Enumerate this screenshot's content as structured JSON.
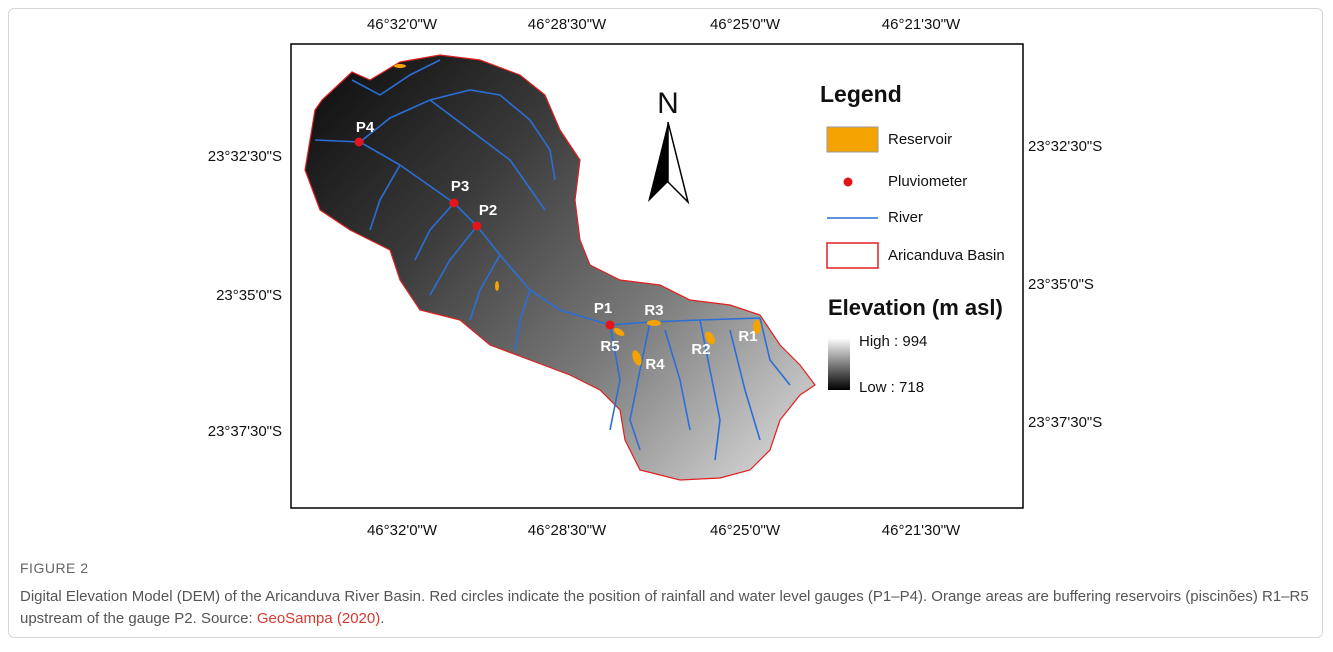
{
  "map": {
    "x_axis_labels": [
      "46°32'0\"W",
      "46°28'30\"W",
      "46°25'0\"W",
      "46°21'30\"W"
    ],
    "y_axis_labels_left": [
      "23°32'30\"S",
      "23°35'0\"S",
      "23°37'30\"S"
    ],
    "y_axis_labels_right": [
      "23°32'30\"S",
      "23°35'0\"S",
      "23°37'30\"S"
    ],
    "north": "N",
    "legend": {
      "title": "Legend",
      "items": [
        "Reservoir",
        "Pluviometer",
        "River",
        "Aricanduva Basin"
      ]
    },
    "elevation": {
      "title": "Elevation (m asl)",
      "high": "High : 994",
      "low": "Low : 718"
    },
    "gauges": [
      "P1",
      "P2",
      "P3",
      "P4"
    ],
    "reservoirs": [
      "R1",
      "R2",
      "R3",
      "R4",
      "R5"
    ]
  },
  "caption": {
    "label": "FIGURE 2",
    "text": "Digital Elevation Model (DEM) of the Aricanduva River Basin. Red circles indicate the position of rainfall and water level gauges (P1–P4). Orange areas are buffering reservoirs (piscinões) R1–R5 upstream of the gauge P2. Source: ",
    "source_link": "GeoSampa (2020)",
    "end": "."
  }
}
